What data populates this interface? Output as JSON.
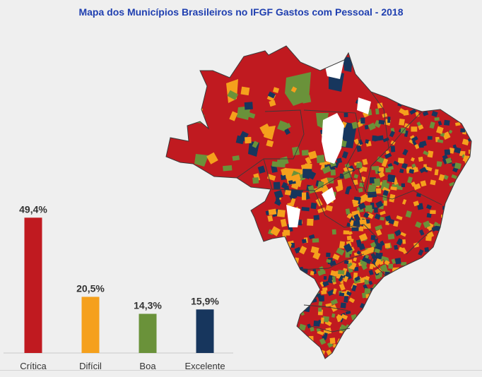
{
  "title": "Mapa dos Municípios Brasileiros no IFGF Gastos com Pessoal - 2018",
  "chart_data": {
    "type": "bar",
    "categories": [
      "Crítica",
      "Difícil",
      "Boa",
      "Excelente"
    ],
    "values": [
      49.4,
      20.5,
      14.3,
      15.9
    ],
    "value_labels": [
      "49,4%",
      "20,5%",
      "14,3%",
      "15,9%"
    ],
    "colors": [
      "#c01a20",
      "#f5a01c",
      "#6a923a",
      "#17365d"
    ],
    "ylim": [
      0,
      50
    ],
    "grid": false,
    "legend": "none"
  },
  "map": {
    "categories": [
      "Crítica",
      "Difícil",
      "Boa",
      "Excelente"
    ],
    "colors": {
      "Crítica": "#c01a20",
      "Difícil": "#f5a01c",
      "Boa": "#6a923a",
      "Excelente": "#17365d",
      "no_data": "#ffffff",
      "border": "#3a3a3a"
    }
  }
}
